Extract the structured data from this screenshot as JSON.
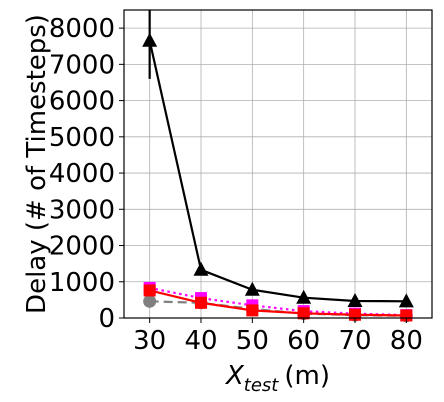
{
  "chart_data": {
    "type": "line",
    "xlabel_main": "X",
    "xlabel_sub": "test",
    "xlabel_unit": "(m)",
    "ylabel": "Delay (# of Timesteps)",
    "x": [
      30,
      40,
      50,
      60,
      70,
      80
    ],
    "xticks": [
      "30",
      "40",
      "50",
      "60",
      "70",
      "80"
    ],
    "yticks": [
      "0",
      "1000",
      "2000",
      "3000",
      "4000",
      "5000",
      "6000",
      "7000",
      "8000"
    ],
    "xlim": [
      25,
      85
    ],
    "ylim": [
      0,
      8500
    ],
    "grid": true,
    "series": [
      {
        "color": "#000000",
        "marker": "triangle",
        "dash": "solid",
        "values": [
          7650,
          1330,
          780,
          560,
          470,
          460
        ],
        "error_low": [
          6600,
          null,
          null,
          null,
          null,
          null
        ],
        "error_high": [
          8600,
          null,
          null,
          null,
          null,
          null
        ]
      },
      {
        "color": "#ff00ff",
        "marker": "square",
        "dash": "dotted",
        "values": [
          830,
          550,
          350,
          190,
          120,
          80
        ]
      },
      {
        "color": "#808080",
        "marker": "circle",
        "dash": "dashed",
        "values": [
          460,
          420,
          250,
          120,
          80,
          60
        ]
      },
      {
        "color": "#ff0000",
        "marker": "square",
        "dash": "solid",
        "values": [
          760,
          420,
          210,
          130,
          90,
          70
        ]
      }
    ]
  }
}
